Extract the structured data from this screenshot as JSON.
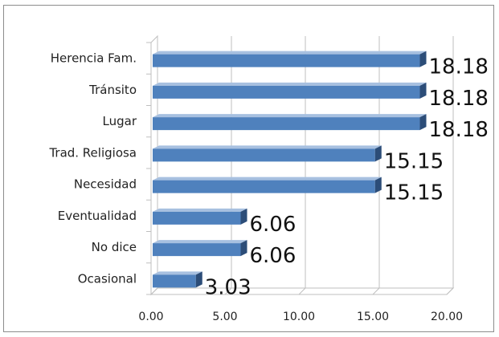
{
  "chart_data": {
    "type": "bar",
    "orientation": "horizontal",
    "style": "3d-clustered",
    "categories": [
      "Herencia Fam.",
      "Tránsito",
      "Lugar",
      "Trad. Religiosa",
      "Necesidad",
      "Eventualidad",
      "No dice",
      "Ocasional"
    ],
    "values": [
      18.18,
      18.18,
      18.18,
      15.15,
      15.15,
      6.06,
      6.06,
      3.03
    ],
    "data_labels": [
      "18.18",
      "18.18",
      "18.18",
      "15.15",
      "15.15",
      "6.06",
      "6.06",
      "3.03"
    ],
    "x_ticks": [
      "0.00",
      "5.00",
      "10.00",
      "15.00",
      "20.00"
    ],
    "xlim": [
      0,
      20
    ],
    "title": "",
    "xlabel": "",
    "ylabel": "",
    "grid": true,
    "legend": "none",
    "colors": {
      "bar_front": "#4f81bd",
      "bar_top": "#a7c0e0",
      "bar_side": "#2c4d78",
      "grid": "#bfbfbf",
      "frame": "#8c8c8c"
    }
  }
}
